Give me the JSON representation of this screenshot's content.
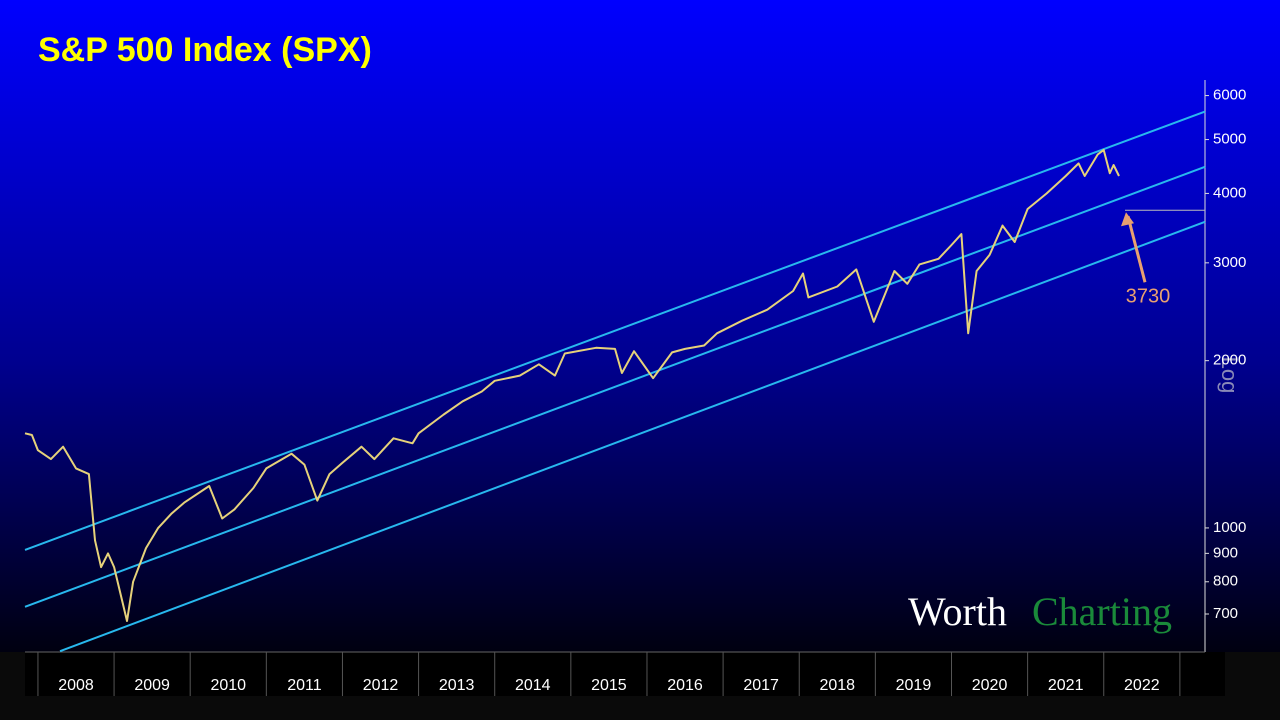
{
  "chart_data": {
    "type": "line",
    "title": "S&P 500 Index (SPX)",
    "x": [
      2007.83,
      2007.92,
      2008.0,
      2008.17,
      2008.33,
      2008.5,
      2008.67,
      2008.75,
      2008.83,
      2008.92,
      2009.0,
      2009.17,
      2009.25,
      2009.42,
      2009.58,
      2009.75,
      2009.92,
      2010.25,
      2010.42,
      2010.58,
      2010.83,
      2011.0,
      2011.33,
      2011.5,
      2011.67,
      2011.83,
      2012.0,
      2012.25,
      2012.42,
      2012.67,
      2012.92,
      2013.0,
      2013.33,
      2013.58,
      2013.83,
      2014.0,
      2014.33,
      2014.58,
      2014.79,
      2014.92,
      2015.33,
      2015.58,
      2015.67,
      2015.83,
      2016.08,
      2016.33,
      2016.5,
      2016.75,
      2016.92,
      2017.25,
      2017.58,
      2017.92,
      2018.05,
      2018.12,
      2018.5,
      2018.75,
      2018.98,
      2019.25,
      2019.42,
      2019.58,
      2019.83,
      2020.0,
      2020.13,
      2020.22,
      2020.33,
      2020.5,
      2020.67,
      2020.83,
      2021.0,
      2021.25,
      2021.5,
      2021.67,
      2021.75,
      2021.92,
      2022.0,
      2022.08,
      2022.13,
      2022.2
    ],
    "series": [
      {
        "color": "#e6d27a",
        "values": [
          1480,
          1470,
          1380,
          1330,
          1400,
          1280,
          1250,
          950,
          850,
          900,
          850,
          680,
          800,
          920,
          1000,
          1060,
          1110,
          1190,
          1040,
          1080,
          1180,
          1280,
          1360,
          1300,
          1120,
          1250,
          1310,
          1400,
          1330,
          1450,
          1420,
          1480,
          1600,
          1690,
          1760,
          1840,
          1880,
          1970,
          1880,
          2060,
          2110,
          2100,
          1900,
          2080,
          1860,
          2070,
          2100,
          2130,
          2240,
          2360,
          2470,
          2670,
          2870,
          2600,
          2720,
          2920,
          2350,
          2900,
          2750,
          2980,
          3050,
          3230,
          3380,
          2240,
          2900,
          3100,
          3500,
          3270,
          3750,
          4000,
          4300,
          4530,
          4300,
          4700,
          4790,
          4350,
          4500,
          4300
        ]
      }
    ],
    "channels": [
      {
        "x": [
          2007.83,
          2023.33
        ],
        "y": [
          913,
          5616
        ]
      },
      {
        "x": [
          2007.83,
          2023.33
        ],
        "y": [
          721,
          4467
        ]
      },
      {
        "x": [
          2008.29,
          2023.33
        ],
        "y": [
          600,
          3556
        ]
      }
    ],
    "channel_color": "#28b8ee",
    "annotation": {
      "value": 3730,
      "color": "#e8a070"
    },
    "xlim": [
      2007.83,
      2023.33
    ],
    "xticks": [
      2008,
      2009,
      2010,
      2011,
      2012,
      2013,
      2014,
      2015,
      2016,
      2017,
      2018,
      2019,
      2020,
      2021,
      2022
    ],
    "ylim": [
      598,
      6400
    ],
    "log_scale": true,
    "yticks": [
      700,
      800,
      900,
      1000,
      2000,
      3000,
      4000,
      5000,
      6000
    ],
    "scale_label": "Log",
    "watermark": [
      "Worth",
      "Charting"
    ]
  }
}
